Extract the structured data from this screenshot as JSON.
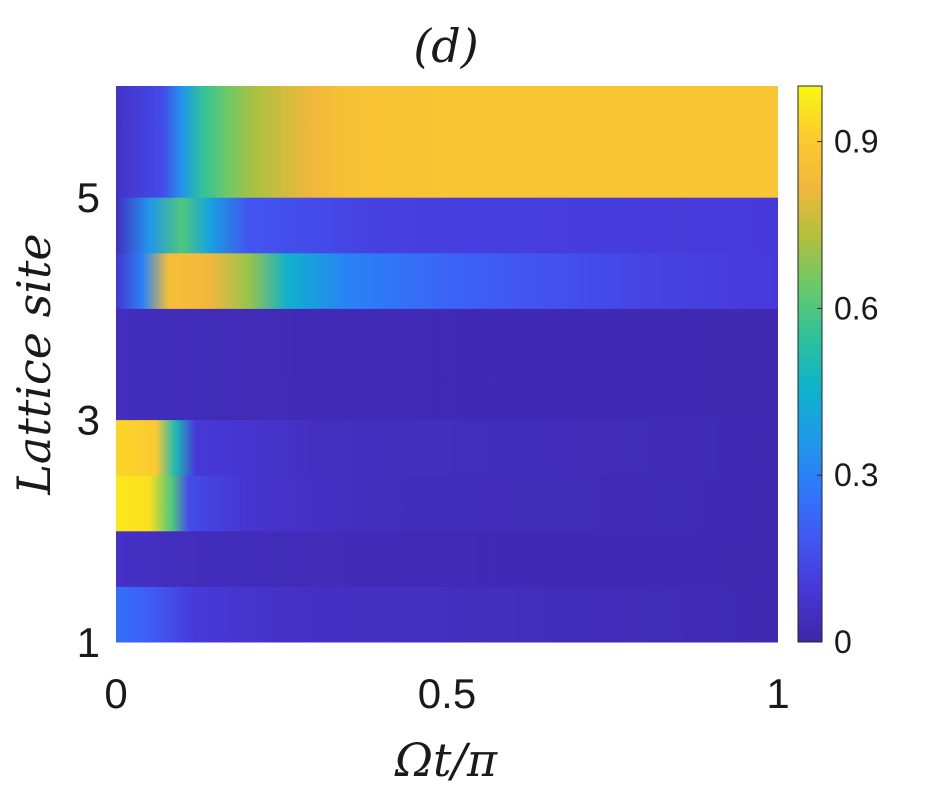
{
  "chart_data": {
    "type": "heatmap",
    "title": "(d)",
    "xlabel": "Ωt/π",
    "ylabel": "Lattice site",
    "xlim": [
      0,
      1
    ],
    "ylim": [
      1,
      6
    ],
    "xticks": [
      0,
      0.5,
      1
    ],
    "xtick_labels": [
      "0",
      "0.5",
      "1"
    ],
    "yticks": [
      1,
      3,
      5
    ],
    "ytick_labels": [
      "1",
      "3",
      "5"
    ],
    "colorbar": {
      "colormap": "parula",
      "range": [
        0,
        1
      ],
      "ticks": [
        0,
        0.3,
        0.6,
        0.9
      ],
      "tick_labels": [
        "0",
        "0.3",
        "0.6",
        "0.9"
      ]
    },
    "colormap_colors": [
      "#3e26a8",
      "#4836d6",
      "#4256f2",
      "#2e78fb",
      "#1f9ae9",
      "#0eb2cc",
      "#2cc29c",
      "#67c96b",
      "#b0c03d",
      "#f2b83b",
      "#fccb2f",
      "#f9f80f"
    ],
    "rows": [
      {
        "site": 1,
        "y": [
          1.0,
          1.5
        ],
        "profile": [
          [
            0,
            0.25
          ],
          [
            0.05,
            0.2
          ],
          [
            0.12,
            0.1
          ],
          [
            0.25,
            0.06
          ],
          [
            1,
            0.02
          ]
        ]
      },
      {
        "site": 2,
        "y": [
          1.5,
          2.0
        ],
        "profile": [
          [
            0,
            0.06
          ],
          [
            0.1,
            0.04
          ],
          [
            0.3,
            0.03
          ],
          [
            1,
            0.02
          ]
        ]
      },
      {
        "site": 3,
        "y": [
          2.0,
          2.5
        ],
        "profile": [
          [
            0,
            0.97
          ],
          [
            0.05,
            0.95
          ],
          [
            0.085,
            0.6
          ],
          [
            0.11,
            0.15
          ],
          [
            0.2,
            0.08
          ],
          [
            0.4,
            0.04
          ],
          [
            1,
            0.02
          ]
        ]
      },
      {
        "site": 3,
        "y": [
          2.5,
          3.0
        ],
        "profile": [
          [
            0,
            0.93
          ],
          [
            0.06,
            0.9
          ],
          [
            0.09,
            0.5
          ],
          [
            0.12,
            0.1
          ],
          [
            0.3,
            0.05
          ],
          [
            1,
            0.02
          ]
        ]
      },
      {
        "site": 4,
        "y": [
          3.0,
          4.0
        ],
        "profile": [
          [
            0,
            0.04
          ],
          [
            0.2,
            0.03
          ],
          [
            1,
            0.02
          ]
        ]
      },
      {
        "site": 5,
        "y": [
          4.0,
          4.5
        ],
        "profile": [
          [
            0,
            0.08
          ],
          [
            0.04,
            0.3
          ],
          [
            0.08,
            0.85
          ],
          [
            0.14,
            0.82
          ],
          [
            0.2,
            0.7
          ],
          [
            0.26,
            0.45
          ],
          [
            0.35,
            0.3
          ],
          [
            0.5,
            0.22
          ],
          [
            0.65,
            0.17
          ],
          [
            0.8,
            0.13
          ],
          [
            1,
            0.1
          ]
        ]
      },
      {
        "site": 5,
        "y": [
          4.5,
          5.0
        ],
        "profile": [
          [
            0,
            0.05
          ],
          [
            0.05,
            0.35
          ],
          [
            0.1,
            0.6
          ],
          [
            0.14,
            0.4
          ],
          [
            0.2,
            0.18
          ],
          [
            0.4,
            0.12
          ],
          [
            1,
            0.1
          ]
        ]
      },
      {
        "site": 6,
        "y": [
          5.0,
          6.0
        ],
        "profile": [
          [
            0,
            0.06
          ],
          [
            0.07,
            0.15
          ],
          [
            0.1,
            0.35
          ],
          [
            0.13,
            0.55
          ],
          [
            0.17,
            0.65
          ],
          [
            0.21,
            0.72
          ],
          [
            0.26,
            0.78
          ],
          [
            0.3,
            0.82
          ],
          [
            0.35,
            0.86
          ],
          [
            0.5,
            0.88
          ],
          [
            1,
            0.88
          ]
        ]
      }
    ]
  }
}
